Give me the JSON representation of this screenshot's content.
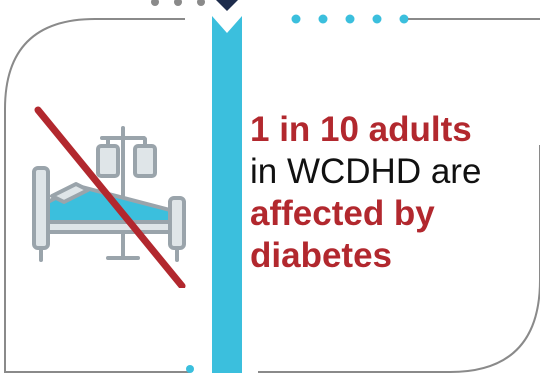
{
  "stat": {
    "highlight_1": "1 in 10 adults",
    "plain": "in WCDHD are",
    "highlight_2a": "affected by",
    "highlight_2b": "diabetes"
  },
  "icon": {
    "name": "hospital-bed-iv-prohibited-icon"
  },
  "colors": {
    "accent_red": "#b2282e",
    "cyan": "#3bbfdd",
    "navy": "#1d2c4c",
    "gray": "#8a8a8a",
    "icon_gray": "#9aa4ab",
    "icon_light": "#dfe5e8"
  }
}
